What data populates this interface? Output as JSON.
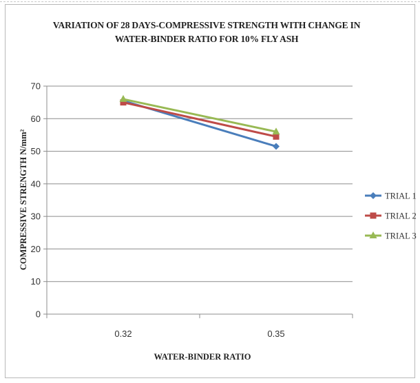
{
  "chart_data": {
    "type": "line",
    "title_lines": [
      "VARIATION OF 28 DAYS-COMPRESSIVE STRENGTH WITH CHANGE IN",
      "WATER-BINDER RATIO FOR 10% FLY ASH"
    ],
    "xlabel": "WATER-BINDER RATIO",
    "ylabel": "COMPRESSIVE STRENGTH N/mm²",
    "categories": [
      "0.32",
      "0.35"
    ],
    "ylim": [
      0,
      70
    ],
    "yticks": [
      0,
      10,
      20,
      30,
      40,
      50,
      60,
      70
    ],
    "grid": true,
    "legend_position": "right",
    "series": [
      {
        "name": "TRIAL 1",
        "values": [
          65.5,
          51.5
        ],
        "color": "#4a7ebb",
        "marker": "diamond"
      },
      {
        "name": "TRIAL 2",
        "values": [
          65.0,
          54.5
        ],
        "color": "#be4b48",
        "marker": "square"
      },
      {
        "name": "TRIAL 3",
        "values": [
          66.0,
          56.0
        ],
        "color": "#98b954",
        "marker": "triangle"
      }
    ]
  }
}
